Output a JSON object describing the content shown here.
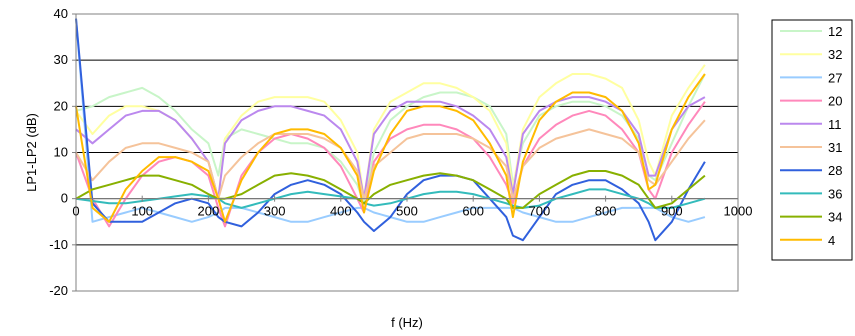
{
  "chart_data": {
    "type": "line",
    "title": "",
    "xlabel": "f (Hz)",
    "ylabel": "LP1-LP2 (dB)",
    "xlim": [
      0,
      1000
    ],
    "ylim": [
      -20,
      40
    ],
    "x_ticks": [
      "0",
      "100",
      "200",
      "300",
      "400",
      "500",
      "600",
      "700",
      "800",
      "900",
      "1000"
    ],
    "y_ticks": [
      "40",
      "30",
      "20",
      "10",
      "0",
      "-10",
      "-20"
    ],
    "grid": "horizontal",
    "legend_position": "right",
    "x": [
      0,
      25,
      50,
      75,
      100,
      125,
      150,
      175,
      200,
      215,
      225,
      250,
      275,
      300,
      325,
      350,
      375,
      400,
      425,
      435,
      450,
      475,
      500,
      525,
      550,
      575,
      600,
      625,
      650,
      660,
      675,
      700,
      725,
      750,
      775,
      800,
      825,
      850,
      865,
      875,
      900,
      925,
      950
    ],
    "series": [
      {
        "name": "12",
        "color": "#c8f5c8",
        "values": [
          19,
          20,
          22,
          23,
          24,
          22,
          19,
          15,
          12,
          5,
          13,
          15,
          14,
          13,
          12,
          12,
          11,
          8,
          3,
          -1,
          10,
          17,
          20,
          22,
          23,
          23,
          22,
          20,
          14,
          3,
          12,
          18,
          20,
          21,
          21,
          20,
          18,
          13,
          5,
          4,
          12,
          20,
          27
        ]
      },
      {
        "name": "32",
        "color": "#ffffa0",
        "values": [
          19,
          14,
          18,
          20,
          20,
          19,
          17,
          13,
          8,
          0,
          13,
          18,
          21,
          22,
          22,
          22,
          21,
          17,
          10,
          0,
          15,
          21,
          23,
          25,
          25,
          24,
          22,
          19,
          12,
          2,
          15,
          22,
          25,
          27,
          27,
          26,
          24,
          17,
          8,
          5,
          18,
          24,
          29
        ]
      },
      {
        "name": "27",
        "color": "#99ccff",
        "values": [
          39,
          -5,
          -4,
          -3,
          -2,
          -3,
          -4,
          -5,
          -4,
          -3,
          -2,
          -2,
          -3,
          -4,
          -5,
          -5,
          -4,
          -3,
          -2,
          -2,
          -3,
          -4,
          -5,
          -5,
          -4,
          -3,
          -2,
          -2,
          -2,
          -2,
          -3,
          -4,
          -5,
          -5,
          -4,
          -3,
          -2,
          -2,
          -2,
          -2,
          -4,
          -5,
          -4
        ]
      },
      {
        "name": "20",
        "color": "#ff88bb",
        "values": [
          10,
          0,
          -6,
          0,
          5,
          8,
          9,
          8,
          5,
          -2,
          -6,
          5,
          10,
          13,
          14,
          13,
          11,
          7,
          0,
          -3,
          8,
          13,
          15,
          16,
          16,
          15,
          13,
          9,
          3,
          -1,
          7,
          13,
          16,
          18,
          19,
          18,
          15,
          10,
          2,
          0,
          10,
          16,
          21
        ]
      },
      {
        "name": "11",
        "color": "#bb88ee",
        "values": [
          15,
          12,
          15,
          18,
          19,
          19,
          17,
          13,
          8,
          0,
          12,
          17,
          19,
          20,
          20,
          19,
          18,
          15,
          8,
          0,
          14,
          19,
          21,
          21,
          21,
          20,
          18,
          15,
          9,
          1,
          14,
          19,
          21,
          22,
          22,
          21,
          19,
          14,
          5,
          5,
          15,
          20,
          22
        ]
      },
      {
        "name": "31",
        "color": "#f5c39a",
        "values": [
          10,
          4,
          8,
          11,
          12,
          12,
          11,
          10,
          8,
          0,
          5,
          9,
          12,
          14,
          14,
          14,
          13,
          11,
          6,
          0,
          7,
          10,
          13,
          14,
          14,
          14,
          13,
          11,
          7,
          0,
          7,
          11,
          13,
          14,
          15,
          14,
          13,
          10,
          4,
          3,
          8,
          13,
          17
        ]
      },
      {
        "name": "28",
        "color": "#3060dd",
        "values": [
          39,
          -1,
          -5,
          -5,
          -5,
          -3,
          -1,
          0,
          -1,
          -4,
          -5,
          -6,
          -3,
          1,
          3,
          4,
          3,
          1,
          -3,
          -5,
          -7,
          -4,
          1,
          4,
          5,
          5,
          4,
          0,
          -4,
          -8,
          -9,
          -4,
          1,
          3,
          4,
          4,
          2,
          -1,
          -5,
          -9,
          -5,
          2,
          8
        ]
      },
      {
        "name": "36",
        "color": "#33bbbb",
        "values": [
          0,
          -0.5,
          -1,
          -1,
          -0.5,
          0,
          0.5,
          1,
          0.5,
          0,
          -1,
          -2,
          -1,
          0,
          1,
          1.5,
          1,
          0.5,
          0,
          -1,
          -1.5,
          -1,
          0,
          1,
          1.5,
          1.5,
          1,
          0,
          -1,
          -1.5,
          -2,
          -1.5,
          0,
          1,
          2,
          2,
          1,
          0,
          -1,
          -2,
          -2,
          -1,
          0
        ]
      },
      {
        "name": "34",
        "color": "#88b000",
        "values": [
          0,
          2,
          3,
          4,
          5,
          5,
          4,
          3,
          1,
          0,
          0,
          1,
          3,
          5,
          5.5,
          5,
          4,
          2,
          0,
          -1,
          1,
          3,
          4,
          5,
          5.5,
          5,
          4,
          2,
          0,
          -2,
          -2,
          1,
          3,
          5,
          6,
          6,
          5,
          3,
          0,
          -2,
          -1,
          2,
          5
        ]
      },
      {
        "name": "4",
        "color": "#ffbb00",
        "values": [
          20,
          -2,
          -5,
          2,
          6,
          9,
          9,
          8,
          6,
          0,
          -5,
          4,
          10,
          14,
          15,
          15,
          14,
          11,
          5,
          -3,
          6,
          14,
          19,
          20,
          20,
          19,
          17,
          12,
          5,
          -4,
          8,
          17,
          21,
          23,
          23,
          22,
          19,
          12,
          2,
          3,
          15,
          22,
          27
        ]
      }
    ]
  }
}
